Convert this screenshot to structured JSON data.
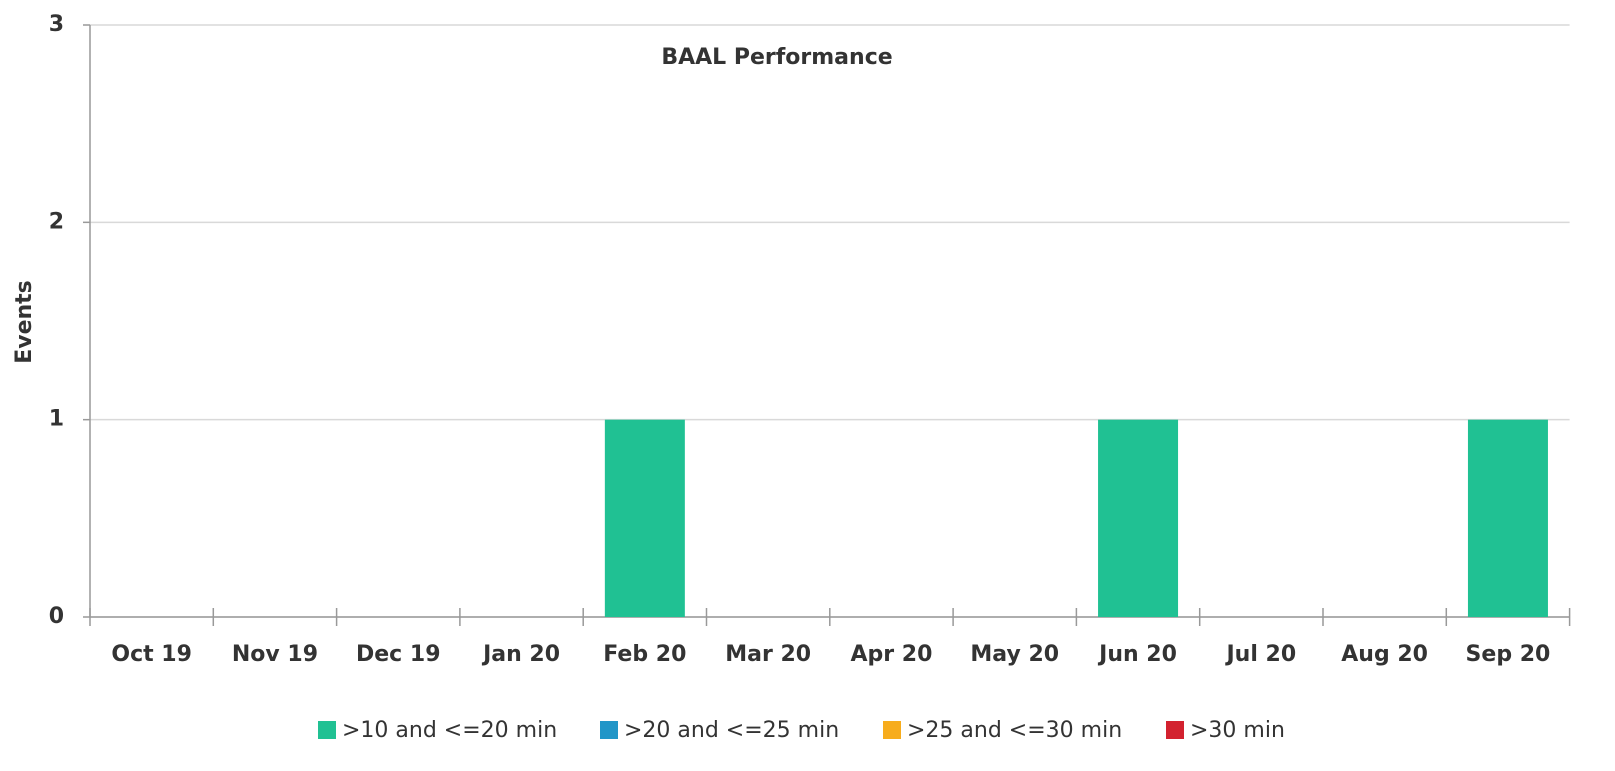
{
  "chart_data": {
    "type": "stacked_bar",
    "title": "BAAL Performance",
    "y_label": "Events",
    "categories": [
      "Oct 19",
      "Nov 19",
      "Dec 19",
      "Jan 20",
      "Feb 20",
      "Mar 20",
      "Apr 20",
      "May 20",
      "Jun 20",
      "Jul 20",
      "Aug 20",
      "Sep 20"
    ],
    "series": [
      {
        "name": ">10 and <=20 min",
        "color": "#20c193",
        "values": [
          0,
          0,
          0,
          0,
          1,
          0,
          0,
          0,
          1,
          0,
          0,
          1
        ]
      },
      {
        "name": ">20 and <=25 min",
        "color": "#2196c8",
        "values": [
          0,
          0,
          0,
          0,
          0,
          0,
          0,
          0,
          0,
          0,
          0,
          0
        ]
      },
      {
        "name": ">25 and <=30 min",
        "color": "#f7ac1c",
        "values": [
          0,
          0,
          0,
          0,
          0,
          0,
          0,
          0,
          0,
          0,
          0,
          0
        ]
      },
      {
        "name": ">30 min",
        "color": "#d3222f",
        "values": [
          0,
          0,
          0,
          0,
          0,
          0,
          0,
          0,
          0,
          0,
          0,
          0
        ]
      }
    ],
    "ylim": [
      0,
      3
    ],
    "yticks": [
      0,
      1,
      2,
      3
    ],
    "grid": true,
    "legend": "bottom"
  }
}
